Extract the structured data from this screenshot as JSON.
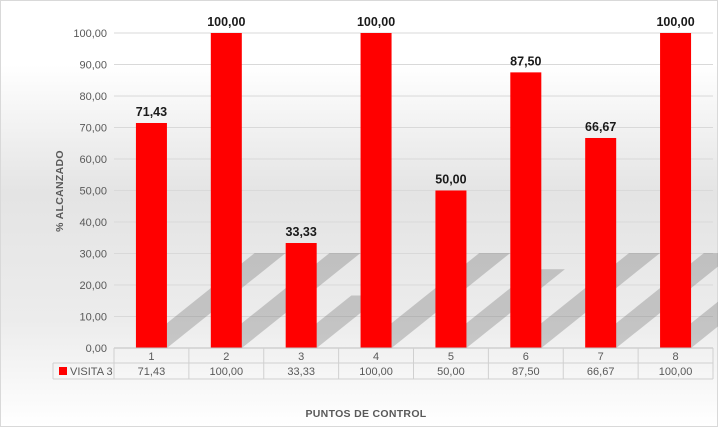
{
  "chart_data": {
    "type": "bar",
    "categories": [
      "1",
      "2",
      "3",
      "4",
      "5",
      "6",
      "7",
      "8"
    ],
    "series": [
      {
        "name": "VISITA 3",
        "values": [
          71.43,
          100.0,
          33.33,
          100.0,
          50.0,
          87.5,
          66.67,
          100.0
        ],
        "labels": [
          "71,43",
          "100,00",
          "33,33",
          "100,00",
          "50,00",
          "87,50",
          "66,67",
          "100,00"
        ],
        "color": "#ff0000"
      }
    ],
    "yticks": [
      "0,00",
      "10,00",
      "20,00",
      "30,00",
      "40,00",
      "50,00",
      "60,00",
      "70,00",
      "80,00",
      "90,00",
      "100,00"
    ],
    "ylim": [
      0,
      100
    ],
    "xlabel": "PUNTOS DE CONTROL",
    "ylabel": "% ALCANZADO",
    "grid": true,
    "data_table": true,
    "legend": "data-table-left"
  }
}
